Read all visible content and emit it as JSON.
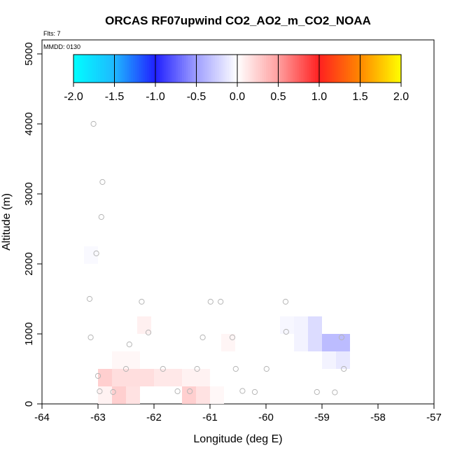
{
  "chart_data": {
    "type": "heatmap",
    "title": "ORCAS RF07upwind CO2_AO2_m_CO2_NOAA",
    "info_lines": [
      "Flts: 7",
      "MMDD: 0130"
    ],
    "xlabel": "Longitude (deg E)",
    "ylabel": "Altitude (m)",
    "xlim": [
      -64,
      -57
    ],
    "ylim": [
      0,
      5200
    ],
    "xticks": [
      -64,
      -63,
      -62,
      -61,
      -60,
      -59,
      -58,
      -57
    ],
    "yticks": [
      0,
      1000,
      2000,
      3000,
      4000,
      5000
    ],
    "colorbar": {
      "min": -2.0,
      "max": 2.0,
      "ticks": [
        "-2.0",
        "-1.5",
        "-1.0",
        "-0.5",
        "0.0",
        "0.5",
        "1.0",
        "1.5",
        "2.0"
      ],
      "stops": [
        [
          -2.0,
          "#00ffff"
        ],
        [
          -1.5,
          "#1fb8ff"
        ],
        [
          -1.0,
          "#2020ff"
        ],
        [
          -0.5,
          "#9f9fff"
        ],
        [
          0.0,
          "#ffffff"
        ],
        [
          0.5,
          "#ff9f9f"
        ],
        [
          1.0,
          "#ff2020"
        ],
        [
          1.5,
          "#ff8800"
        ],
        [
          2.0,
          "#ffff00"
        ]
      ]
    },
    "cells": [
      {
        "x0": -63.25,
        "x1": -63.0,
        "y0": 2000,
        "y1": 2250,
        "value": -0.03
      },
      {
        "x0": -62.3,
        "x1": -62.05,
        "y0": 1000,
        "y1": 1250,
        "value": 0.08
      },
      {
        "x0": -60.8,
        "x1": -60.55,
        "y0": 750,
        "y1": 1000,
        "value": 0.05
      },
      {
        "x0": -59.75,
        "x1": -59.5,
        "y0": 1000,
        "y1": 1250,
        "value": -0.04
      },
      {
        "x0": -59.5,
        "x1": -59.25,
        "y0": 750,
        "y1": 1250,
        "value": -0.06
      },
      {
        "x0": -59.25,
        "x1": -59.0,
        "y0": 750,
        "y1": 1250,
        "value": -0.18
      },
      {
        "x0": -59.0,
        "x1": -58.75,
        "y0": 750,
        "y1": 1000,
        "value": -0.35
      },
      {
        "x0": -58.75,
        "x1": -58.5,
        "y0": 750,
        "y1": 1000,
        "value": -0.35
      },
      {
        "x0": -59.0,
        "x1": -58.75,
        "y0": 500,
        "y1": 750,
        "value": -0.06
      },
      {
        "x0": -58.75,
        "x1": -58.5,
        "y0": 500,
        "y1": 750,
        "value": -0.12
      },
      {
        "x0": -62.75,
        "x1": -62.25,
        "y0": 500,
        "y1": 750,
        "value": 0.04
      },
      {
        "x0": -63.0,
        "x1": -62.75,
        "y0": 250,
        "y1": 500,
        "value": 0.25
      },
      {
        "x0": -62.75,
        "x1": -62.0,
        "y0": 250,
        "y1": 500,
        "value": 0.17
      },
      {
        "x0": -62.0,
        "x1": -61.5,
        "y0": 250,
        "y1": 500,
        "value": 0.12
      },
      {
        "x0": -61.5,
        "x1": -61.0,
        "y0": 250,
        "y1": 500,
        "value": 0.07
      },
      {
        "x0": -63.0,
        "x1": -62.75,
        "y0": 0,
        "y1": 250,
        "value": 0.07
      },
      {
        "x0": -62.75,
        "x1": -62.5,
        "y0": 0,
        "y1": 250,
        "value": 0.25
      },
      {
        "x0": -62.5,
        "x1": -62.25,
        "y0": 0,
        "y1": 250,
        "value": 0.15
      },
      {
        "x0": -61.5,
        "x1": -61.25,
        "y0": 0,
        "y1": 250,
        "value": 0.25
      },
      {
        "x0": -61.25,
        "x1": -61.0,
        "y0": 0,
        "y1": 250,
        "value": 0.15
      },
      {
        "x0": -61.0,
        "x1": -60.75,
        "y0": 0,
        "y1": 250,
        "value": 0.04
      }
    ],
    "points": [
      [
        -63.08,
        4000
      ],
      [
        -62.92,
        3170
      ],
      [
        -62.94,
        2670
      ],
      [
        -63.03,
        2150
      ],
      [
        -63.15,
        1500
      ],
      [
        -63.13,
        950
      ],
      [
        -62.22,
        1460
      ],
      [
        -62.1,
        1020
      ],
      [
        -62.44,
        850
      ],
      [
        -61.13,
        950
      ],
      [
        -60.99,
        1460
      ],
      [
        -60.81,
        1460
      ],
      [
        -60.6,
        950
      ],
      [
        -59.65,
        1460
      ],
      [
        -59.64,
        1030
      ],
      [
        -58.65,
        950
      ],
      [
        -58.61,
        500
      ],
      [
        -63.0,
        400
      ],
      [
        -62.97,
        180
      ],
      [
        -62.5,
        500
      ],
      [
        -62.73,
        170
      ],
      [
        -61.84,
        500
      ],
      [
        -61.58,
        180
      ],
      [
        -61.36,
        180
      ],
      [
        -61.23,
        500
      ],
      [
        -60.54,
        500
      ],
      [
        -60.42,
        185
      ],
      [
        -60.2,
        170
      ],
      [
        -59.99,
        500
      ],
      [
        -59.09,
        170
      ],
      [
        -58.77,
        165
      ]
    ]
  }
}
